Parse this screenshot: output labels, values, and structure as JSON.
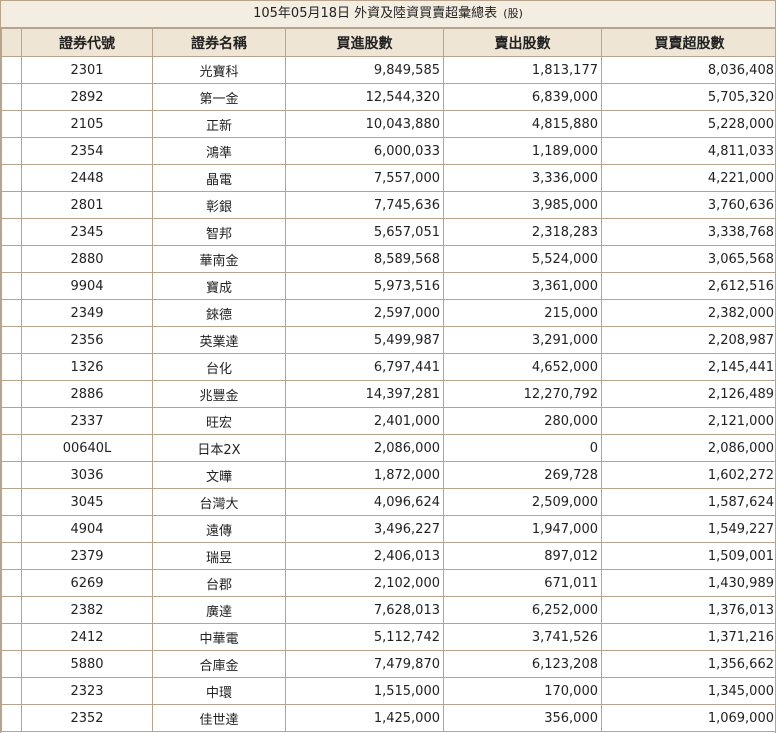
{
  "report": {
    "title": "105年05月18日 外資及陸資買賣超彙總表",
    "unit": "(股)"
  },
  "columns": [
    "證券代號",
    "證券名稱",
    "買進股數",
    "賣出股數",
    "買賣超股數"
  ],
  "rows": [
    {
      "code": "2301",
      "name": "光寶科",
      "buy": "9,849,585",
      "sell": "1,813,177",
      "net": "8,036,408"
    },
    {
      "code": "2892",
      "name": "第一金",
      "buy": "12,544,320",
      "sell": "6,839,000",
      "net": "5,705,320"
    },
    {
      "code": "2105",
      "name": "正新",
      "buy": "10,043,880",
      "sell": "4,815,880",
      "net": "5,228,000"
    },
    {
      "code": "2354",
      "name": "鴻準",
      "buy": "6,000,033",
      "sell": "1,189,000",
      "net": "4,811,033"
    },
    {
      "code": "2448",
      "name": "晶電",
      "buy": "7,557,000",
      "sell": "3,336,000",
      "net": "4,221,000"
    },
    {
      "code": "2801",
      "name": "彰銀",
      "buy": "7,745,636",
      "sell": "3,985,000",
      "net": "3,760,636"
    },
    {
      "code": "2345",
      "name": "智邦",
      "buy": "5,657,051",
      "sell": "2,318,283",
      "net": "3,338,768"
    },
    {
      "code": "2880",
      "name": "華南金",
      "buy": "8,589,568",
      "sell": "5,524,000",
      "net": "3,065,568"
    },
    {
      "code": "9904",
      "name": "寶成",
      "buy": "5,973,516",
      "sell": "3,361,000",
      "net": "2,612,516"
    },
    {
      "code": "2349",
      "name": "錸德",
      "buy": "2,597,000",
      "sell": "215,000",
      "net": "2,382,000"
    },
    {
      "code": "2356",
      "name": "英業達",
      "buy": "5,499,987",
      "sell": "3,291,000",
      "net": "2,208,987"
    },
    {
      "code": "1326",
      "name": "台化",
      "buy": "6,797,441",
      "sell": "4,652,000",
      "net": "2,145,441"
    },
    {
      "code": "2886",
      "name": "兆豐金",
      "buy": "14,397,281",
      "sell": "12,270,792",
      "net": "2,126,489"
    },
    {
      "code": "2337",
      "name": "旺宏",
      "buy": "2,401,000",
      "sell": "280,000",
      "net": "2,121,000"
    },
    {
      "code": "00640L",
      "name": "日本2X",
      "buy": "2,086,000",
      "sell": "0",
      "net": "2,086,000"
    },
    {
      "code": "3036",
      "name": "文曄",
      "buy": "1,872,000",
      "sell": "269,728",
      "net": "1,602,272"
    },
    {
      "code": "3045",
      "name": "台灣大",
      "buy": "4,096,624",
      "sell": "2,509,000",
      "net": "1,587,624"
    },
    {
      "code": "4904",
      "name": "遠傳",
      "buy": "3,496,227",
      "sell": "1,947,000",
      "net": "1,549,227"
    },
    {
      "code": "2379",
      "name": "瑞昱",
      "buy": "2,406,013",
      "sell": "897,012",
      "net": "1,509,001"
    },
    {
      "code": "6269",
      "name": "台郡",
      "buy": "2,102,000",
      "sell": "671,011",
      "net": "1,430,989"
    },
    {
      "code": "2382",
      "name": "廣達",
      "buy": "7,628,013",
      "sell": "6,252,000",
      "net": "1,376,013"
    },
    {
      "code": "2412",
      "name": "中華電",
      "buy": "5,112,742",
      "sell": "3,741,526",
      "net": "1,371,216"
    },
    {
      "code": "5880",
      "name": "合庫金",
      "buy": "7,479,870",
      "sell": "6,123,208",
      "net": "1,356,662"
    },
    {
      "code": "2323",
      "name": "中環",
      "buy": "1,515,000",
      "sell": "170,000",
      "net": "1,345,000"
    },
    {
      "code": "2352",
      "name": "佳世達",
      "buy": "1,425,000",
      "sell": "356,000",
      "net": "1,069,000"
    }
  ]
}
